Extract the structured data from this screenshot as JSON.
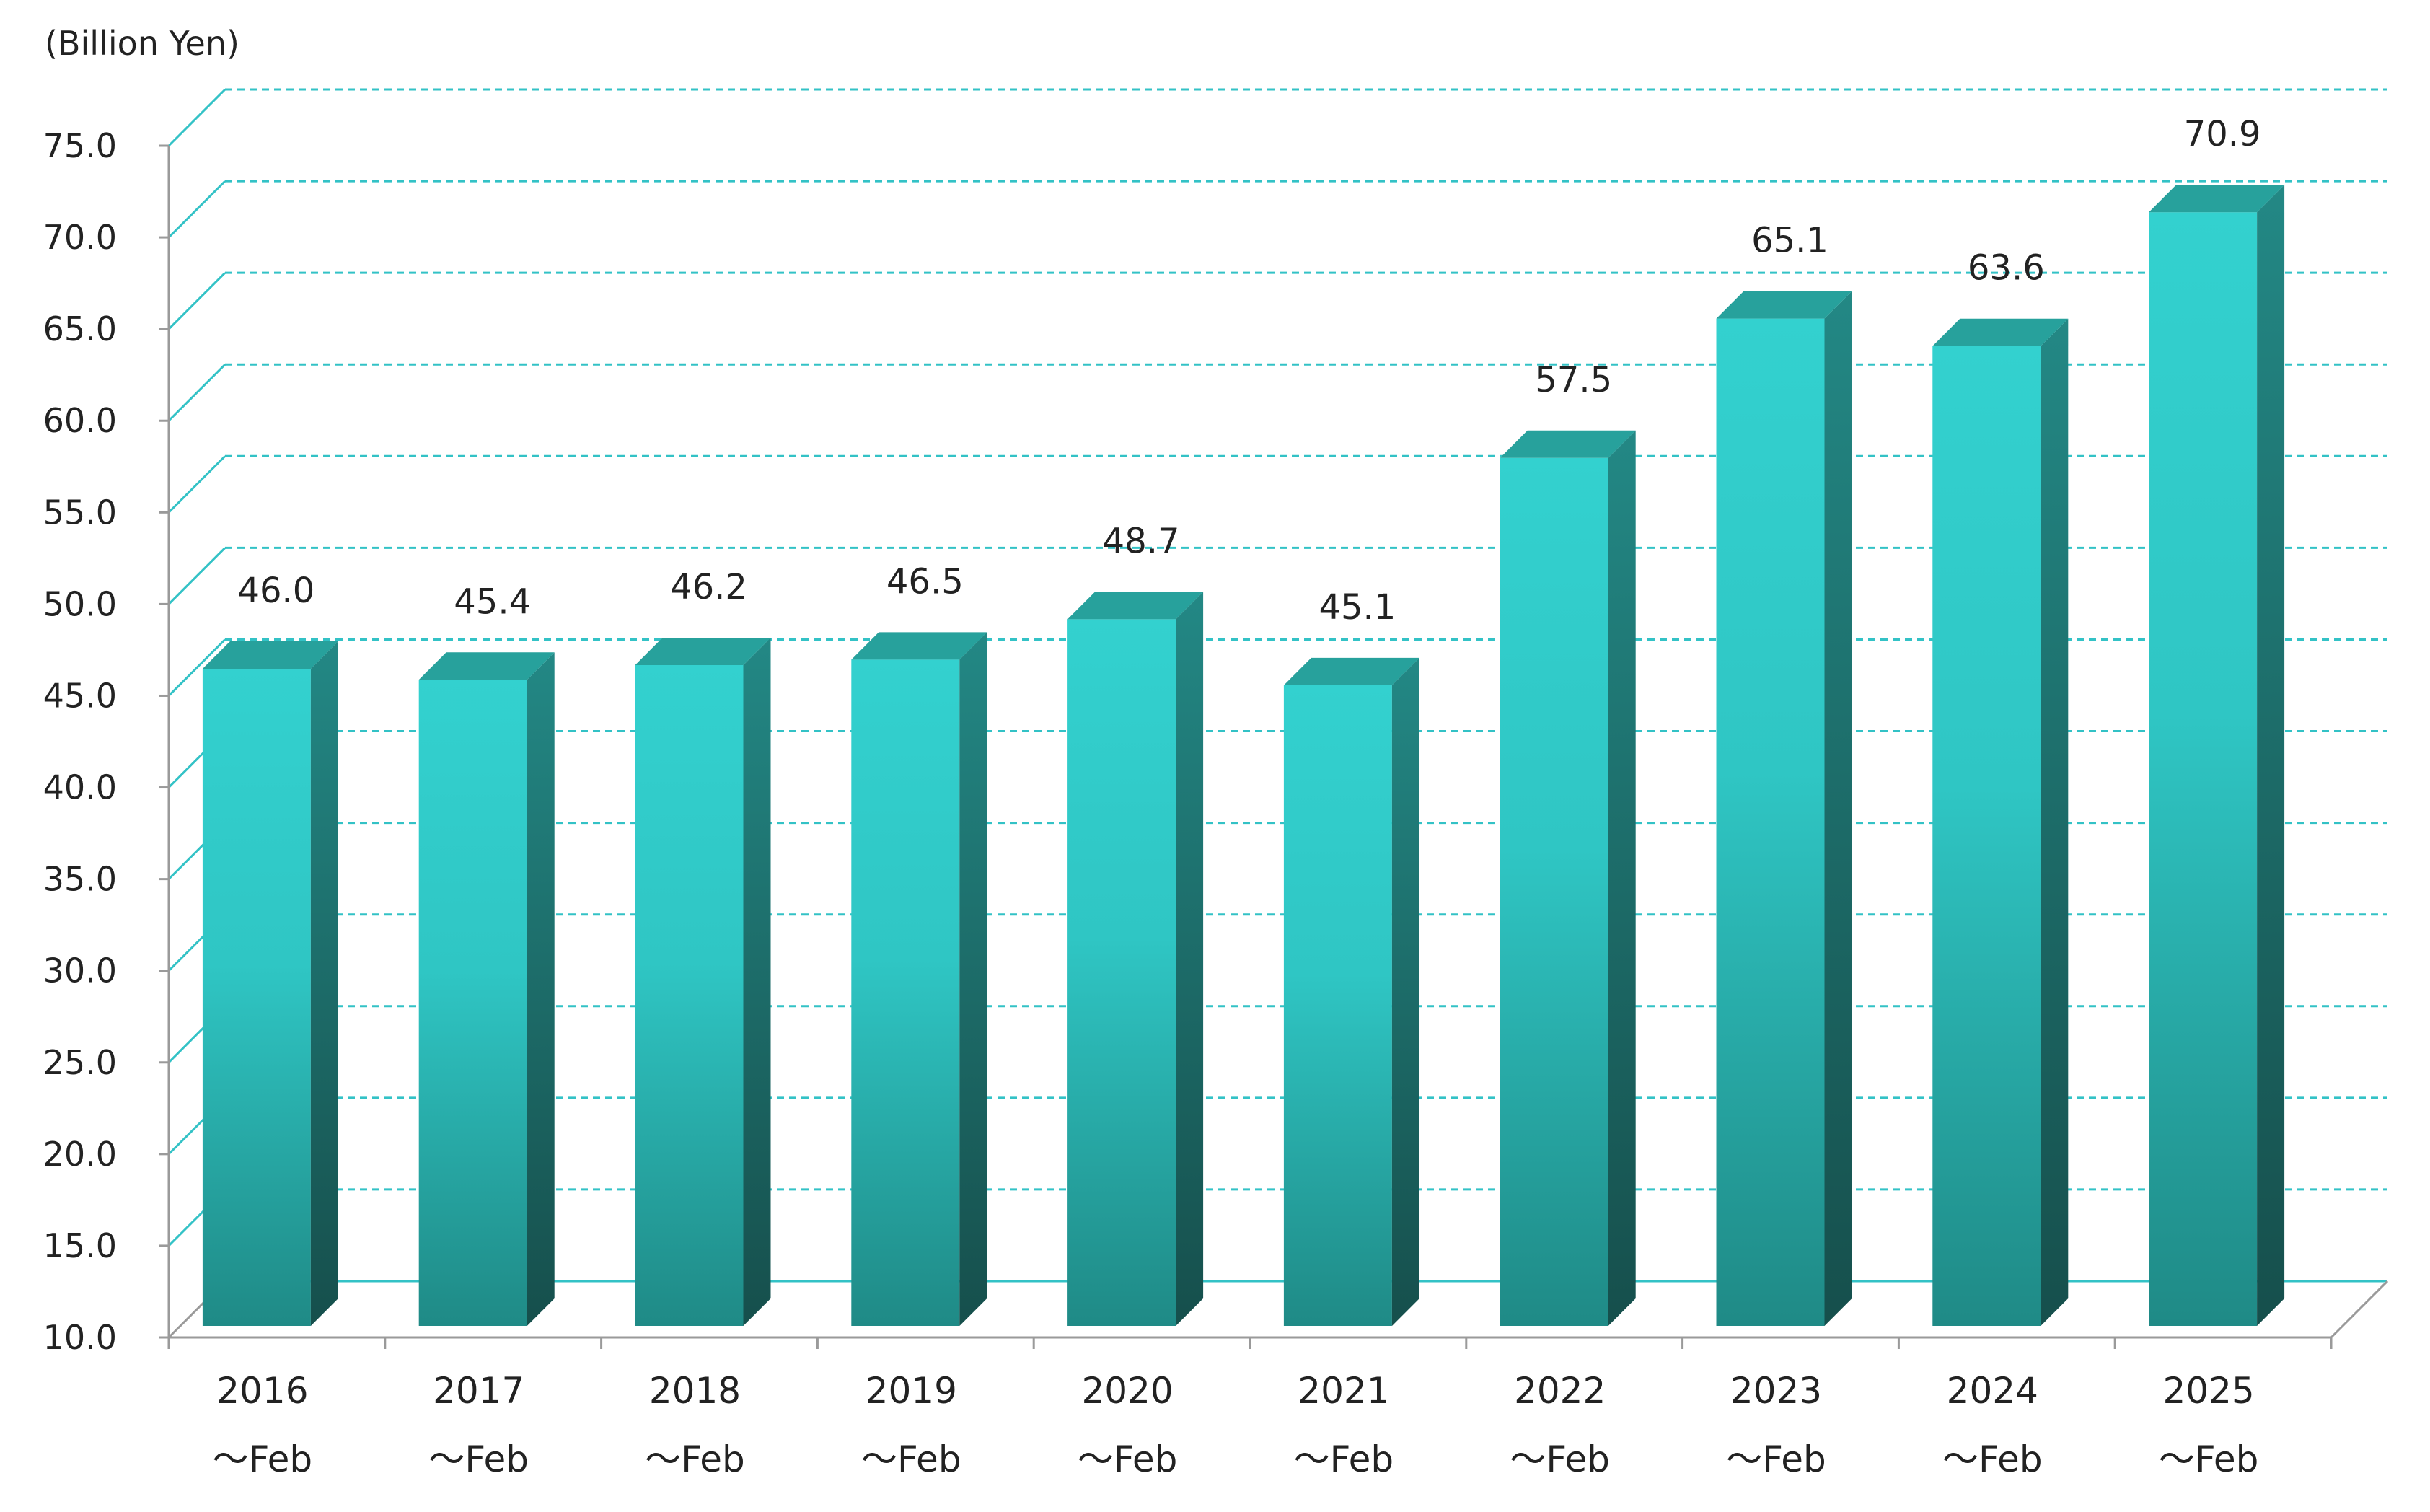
{
  "chart_data": {
    "type": "bar",
    "unit_label": "(Billion Yen)",
    "categories": [
      [
        "2016",
        "～Feb"
      ],
      [
        "2017",
        "～Feb"
      ],
      [
        "2018",
        "～Feb"
      ],
      [
        "2019",
        "～Feb"
      ],
      [
        "2020",
        "～Feb"
      ],
      [
        "2021",
        "～Feb"
      ],
      [
        "2022",
        "～Feb"
      ],
      [
        "2023",
        "～Feb"
      ],
      [
        "2024",
        "～Feb"
      ],
      [
        "2025",
        "～Feb"
      ]
    ],
    "values": [
      46.0,
      45.4,
      46.2,
      46.5,
      48.7,
      45.1,
      57.5,
      65.1,
      63.6,
      70.9
    ],
    "value_labels": [
      "46.0",
      "45.4",
      "46.2",
      "46.5",
      "48.7",
      "45.1",
      "57.5",
      "65.1",
      "63.6",
      "70.9"
    ],
    "ylim": [
      10,
      75
    ],
    "yticks": [
      "10.0",
      "15.0",
      "20.0",
      "25.0",
      "30.0",
      "35.0",
      "40.0",
      "45.0",
      "50.0",
      "55.0",
      "60.0",
      "65.0",
      "70.0",
      "75.0"
    ],
    "grid": true,
    "colors": {
      "bar_front_top": "#33d1cf",
      "bar_front_bottom": "#1f8a86",
      "bar_top": "#27a19c",
      "bar_side_top": "#238885",
      "bar_side_bottom": "#164f4c",
      "grid": "#33c2c6",
      "axis": "#9a9a9a"
    }
  }
}
